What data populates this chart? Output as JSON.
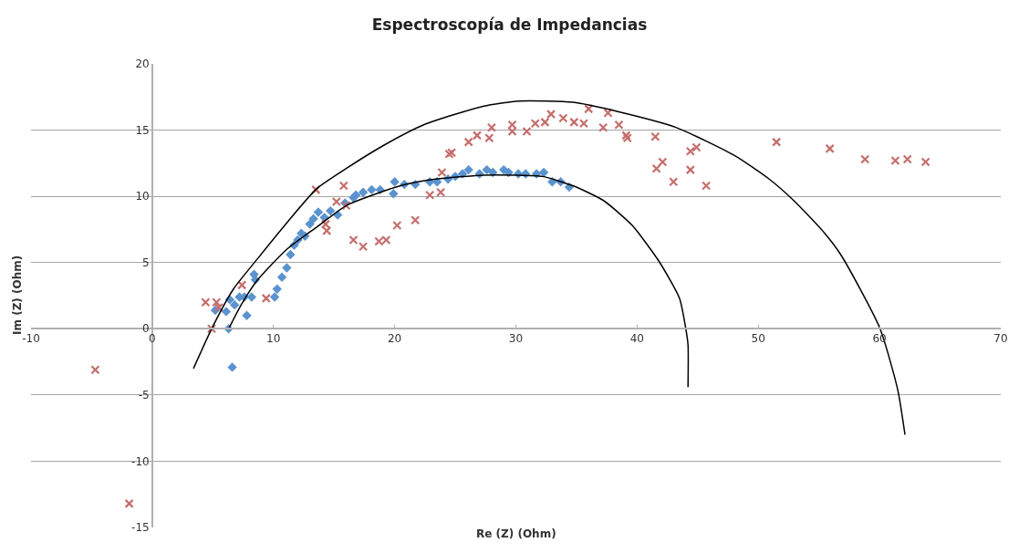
{
  "chart_data": {
    "type": "scatter",
    "title": "Espectroscopía de Impedancias",
    "xlabel": "Re (Z) (Ohm)",
    "ylabel": "Im (Z) (Ohm)",
    "xlim": [
      -10,
      70
    ],
    "xticks": [
      -10,
      0,
      10,
      20,
      30,
      40,
      50,
      60,
      70
    ],
    "ylim": [
      -15,
      20
    ],
    "yticks": [
      -15,
      -10,
      -5,
      0,
      5,
      10,
      15,
      20
    ],
    "grid": "y",
    "series": [
      {
        "marker": "diamond",
        "color": "#5b93cf",
        "x": [
          6.6,
          6.3,
          5.2,
          6.1,
          6.4,
          6.8,
          7.2,
          7.8,
          7.6,
          8.2,
          8.4,
          8.5,
          10.1,
          10.3,
          10.7,
          11.1,
          11.4,
          11.7,
          12.0,
          12.3,
          12.6,
          13.0,
          13.3,
          13.7,
          14.2,
          14.7,
          15.3,
          15.9,
          16.6,
          16.8,
          17.4,
          18.1,
          18.8,
          19.9,
          20.0,
          20.8,
          21.7,
          22.9,
          23.5,
          24.4,
          25.0,
          25.6,
          26.1,
          27.0,
          27.6,
          28.1,
          29.0,
          29.4,
          30.2,
          30.8,
          31.7,
          32.3,
          33.0,
          33.7,
          34.4
        ],
        "values": [
          -2.9,
          0,
          1.4,
          1.3,
          2.2,
          1.8,
          2.4,
          1.0,
          2.4,
          2.4,
          4.1,
          3.7,
          2.4,
          3.0,
          3.9,
          4.6,
          5.6,
          6.3,
          6.7,
          7.2,
          7.0,
          7.9,
          8.3,
          8.8,
          8.4,
          8.9,
          8.6,
          9.5,
          9.9,
          10.1,
          10.3,
          10.5,
          10.5,
          10.2,
          11.1,
          10.9,
          10.9,
          11.1,
          11.1,
          11.3,
          11.5,
          11.7,
          12.0,
          11.7,
          12.0,
          11.8,
          12.0,
          11.8,
          11.7,
          11.7,
          11.7,
          11.8,
          11.1,
          11.1,
          10.7
        ]
      },
      {
        "marker": "cross",
        "color": "#c56e6c",
        "x": [
          -4.7,
          -1.9,
          4.4,
          5.3,
          5.5,
          4.9,
          7.4,
          9.4,
          13.5,
          15.8,
          15.2,
          16.0,
          14.3,
          14.4,
          16.6,
          17.4,
          18.7,
          19.3,
          20.2,
          21.7,
          22.9,
          23.8,
          23.9,
          24.5,
          24.7,
          26.1,
          26.8,
          27.8,
          28.0,
          29.7,
          29.7,
          30.9,
          31.6,
          32.4,
          32.9,
          33.9,
          34.8,
          35.6,
          36.0,
          37.2,
          37.6,
          38.5,
          39.1,
          39.2,
          41.5,
          41.6,
          42.1,
          43.0,
          44.4,
          44.9,
          44.4,
          45.7,
          51.5,
          55.9,
          58.8,
          61.3,
          62.3,
          63.8
        ],
        "values": [
          -3.1,
          -13.2,
          2.0,
          2.0,
          1.6,
          0,
          3.3,
          2.3,
          10.5,
          10.8,
          9.6,
          9.3,
          7.9,
          7.4,
          6.7,
          6.2,
          6.6,
          6.7,
          7.8,
          8.2,
          10.1,
          10.3,
          11.8,
          13.2,
          13.3,
          14.1,
          14.6,
          14.4,
          15.2,
          14.9,
          15.4,
          14.9,
          15.5,
          15.6,
          16.2,
          15.9,
          15.6,
          15.5,
          16.6,
          15.2,
          16.3,
          15.4,
          14.6,
          14.4,
          14.5,
          12.1,
          12.6,
          11.1,
          13.4,
          13.7,
          12.0,
          10.8,
          14.1,
          13.6,
          12.8,
          12.7,
          12.8,
          12.6
        ]
      },
      {
        "type": "line",
        "marker": "none",
        "line_style": "solid",
        "color": "#000000",
        "x": [
          6.3,
          7.4,
          8.7,
          11.1,
          13.6,
          16.0,
          18.5,
          20.9,
          23.4,
          27.3,
          30.0,
          32.2,
          34.7,
          37.2,
          39.6,
          41.8,
          43.5,
          44.0,
          44.2,
          44.2
        ],
        "values": [
          0,
          1.9,
          3.7,
          6.0,
          7.7,
          9.3,
          10.2,
          10.9,
          11.3,
          11.6,
          11.6,
          11.5,
          10.8,
          9.7,
          7.8,
          5.1,
          2.3,
          0.1,
          -1.2,
          -4.4
        ]
      },
      {
        "type": "line",
        "marker": "none",
        "line_style": "solid",
        "color": "#000000",
        "x": [
          3.4,
          4.9,
          6.7,
          8.7,
          11.1,
          13.6,
          16.0,
          19.0,
          22.4,
          27.3,
          30.3,
          34.7,
          38.4,
          43.2,
          48.0,
          50.9,
          52.9,
          55.3,
          56.8,
          60.0,
          61.5,
          62.1
        ],
        "values": [
          -3.0,
          0,
          3.0,
          5.3,
          8.0,
          10.6,
          12.1,
          13.8,
          15.4,
          16.8,
          17.2,
          17.1,
          16.4,
          15.2,
          13.1,
          11.3,
          9.7,
          7.4,
          5.6,
          0.1,
          -4.6,
          -8.0
        ]
      }
    ]
  }
}
